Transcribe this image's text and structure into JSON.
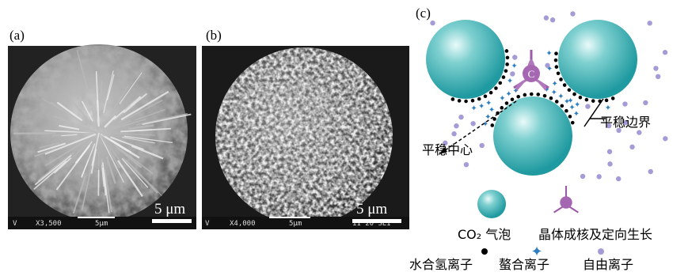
{
  "panels": [
    {
      "label": "(a)",
      "scale_bar": "5 μm",
      "info": [
        "V",
        "X3,500",
        "5μm"
      ]
    },
    {
      "label": "(b)",
      "scale_bar": "5 μm",
      "info": [
        "V",
        "X4,000",
        "5μm",
        "11 20 SEI"
      ]
    },
    {
      "label": "(c)"
    }
  ],
  "diagram": {
    "crystal_letter": "C",
    "boundary_label": "平稳边界",
    "center_label": "平稳中心",
    "legend": {
      "bubble": "CO₂ 气泡",
      "crystal": "晶体成核及定向生长",
      "hydronium": "水合氢离子",
      "chelate": "螯合离子",
      "free": "自由离子"
    }
  }
}
